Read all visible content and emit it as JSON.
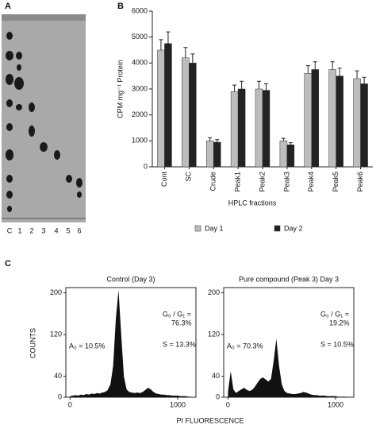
{
  "panel_a": {
    "label": "A",
    "lanes": [
      "C",
      "1",
      "2",
      "3",
      "4",
      "5",
      "6"
    ]
  },
  "panel_c": {
    "label": "C",
    "ylabel": "COUNTS",
    "xlabel": "PI FLUORESCENCE"
  },
  "chart_data": [
    {
      "type": "bar",
      "panel": "B",
      "ylabel": "CPM mg⁻¹ Protein",
      "xlabel": "HPLC fractions",
      "categories": [
        "Cont",
        "SC",
        "Crude",
        "Peak1",
        "Peak2",
        "Peak3",
        "Peak4",
        "Peak5",
        "Peak6"
      ],
      "series": [
        {
          "name": "Day 1",
          "color": "#bdbdbd",
          "values": [
            4500,
            4200,
            1000,
            2900,
            3000,
            1000,
            3600,
            3750,
            3400
          ],
          "errors": [
            400,
            400,
            120,
            250,
            300,
            100,
            300,
            300,
            300
          ]
        },
        {
          "name": "Day 2",
          "color": "#222222",
          "values": [
            4750,
            4000,
            950,
            3000,
            2950,
            850,
            3750,
            3500,
            3200
          ],
          "errors": [
            450,
            350,
            100,
            300,
            250,
            80,
            300,
            300,
            250
          ]
        }
      ],
      "ylim": [
        0,
        6000
      ],
      "yticks": [
        0,
        1000,
        2000,
        3000,
        4000,
        5000,
        6000
      ]
    },
    {
      "type": "area",
      "title": "Control (Day 3)",
      "color": "#111111",
      "annotations": [
        "A₀ = 10.5%",
        "G₀ / G₁ =",
        "76.3%",
        "S = 13.3%"
      ],
      "x": [
        0,
        25,
        50,
        75,
        100,
        125,
        150,
        175,
        200,
        225,
        250,
        275,
        300,
        325,
        350,
        375,
        400,
        425,
        450,
        475,
        500,
        525,
        550,
        575,
        600,
        625,
        650,
        675,
        700,
        725,
        750,
        775,
        800,
        825,
        850,
        875,
        900,
        925,
        950,
        975,
        1000,
        1025,
        1050,
        1075,
        1100,
        1125,
        1150
      ],
      "values": [
        2,
        3,
        4,
        3,
        5,
        4,
        6,
        5,
        7,
        6,
        8,
        7,
        9,
        10,
        14,
        25,
        60,
        150,
        205,
        120,
        40,
        15,
        10,
        9,
        8,
        9,
        8,
        10,
        14,
        18,
        15,
        10,
        7,
        6,
        5,
        5,
        4,
        4,
        3,
        3,
        3,
        2,
        2,
        2,
        1,
        1,
        0
      ],
      "xlim": [
        -40,
        1170
      ],
      "xticks": [
        0,
        1000
      ],
      "ylim": [
        0,
        210
      ],
      "yticks": [
        0,
        40,
        120,
        200
      ]
    },
    {
      "type": "area",
      "title": "Pure compound (Peak 3) Day 3",
      "color": "#111111",
      "annotations": [
        "A₀ = 70.3%",
        "G₀ / G₁ =",
        "19.2%",
        "S = 10.5%"
      ],
      "x": [
        0,
        25,
        50,
        75,
        100,
        125,
        150,
        175,
        200,
        225,
        250,
        275,
        300,
        325,
        350,
        375,
        400,
        425,
        450,
        475,
        500,
        525,
        550,
        575,
        600,
        625,
        650,
        675,
        700,
        725,
        750,
        775,
        800,
        825,
        850,
        875,
        900,
        925,
        950,
        975,
        1000,
        1025,
        1050,
        1075,
        1100,
        1125,
        1150
      ],
      "values": [
        10,
        50,
        15,
        8,
        12,
        15,
        18,
        14,
        12,
        14,
        20,
        28,
        35,
        38,
        34,
        30,
        35,
        70,
        112,
        60,
        25,
        12,
        8,
        7,
        6,
        6,
        7,
        8,
        10,
        9,
        7,
        5,
        4,
        4,
        3,
        3,
        3,
        2,
        2,
        2,
        2,
        1,
        1,
        1,
        1,
        0,
        0
      ],
      "xlim": [
        -40,
        1170
      ],
      "xticks": [
        0,
        1000
      ],
      "ylim": [
        0,
        210
      ],
      "yticks": [
        0,
        40,
        120,
        200
      ]
    }
  ]
}
